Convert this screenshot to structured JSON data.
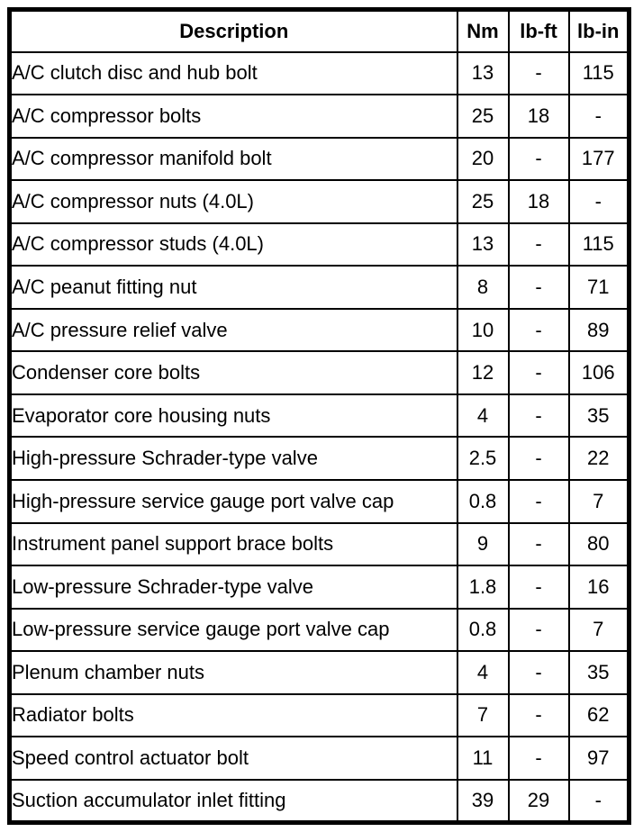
{
  "colors": {
    "background": "#ffffff",
    "border": "#000000",
    "text": "#000000"
  },
  "table": {
    "headers": {
      "description": "Description",
      "nm": "Nm",
      "lbft": "lb-ft",
      "lbin": "lb-in"
    },
    "rows": [
      {
        "description": "A/C clutch disc and hub bolt",
        "nm": "13",
        "lbft": "-",
        "lbin": "115"
      },
      {
        "description": "A/C compressor bolts",
        "nm": "25",
        "lbft": "18",
        "lbin": "-"
      },
      {
        "description": "A/C compressor manifold bolt",
        "nm": "20",
        "lbft": "-",
        "lbin": "177"
      },
      {
        "description": "A/C compressor nuts (4.0L)",
        "nm": "25",
        "lbft": "18",
        "lbin": "-"
      },
      {
        "description": "A/C compressor studs (4.0L)",
        "nm": "13",
        "lbft": "-",
        "lbin": "115"
      },
      {
        "description": "A/C peanut fitting nut",
        "nm": "8",
        "lbft": "-",
        "lbin": "71"
      },
      {
        "description": "A/C pressure relief valve",
        "nm": "10",
        "lbft": "-",
        "lbin": "89"
      },
      {
        "description": "Condenser core bolts",
        "nm": "12",
        "lbft": "-",
        "lbin": "106"
      },
      {
        "description": "Evaporator core housing nuts",
        "nm": "4",
        "lbft": "-",
        "lbin": "35"
      },
      {
        "description": "High-pressure Schrader-type valve",
        "nm": "2.5",
        "lbft": "-",
        "lbin": "22"
      },
      {
        "description": "High-pressure service gauge port valve cap",
        "nm": "0.8",
        "lbft": "-",
        "lbin": "7"
      },
      {
        "description": "Instrument panel support brace bolts",
        "nm": "9",
        "lbft": "-",
        "lbin": "80"
      },
      {
        "description": "Low-pressure Schrader-type valve",
        "nm": "1.8",
        "lbft": "-",
        "lbin": "16"
      },
      {
        "description": "Low-pressure service gauge port valve cap",
        "nm": "0.8",
        "lbft": "-",
        "lbin": "7"
      },
      {
        "description": "Plenum chamber nuts",
        "nm": "4",
        "lbft": "-",
        "lbin": "35"
      },
      {
        "description": "Radiator bolts",
        "nm": "7",
        "lbft": "-",
        "lbin": "62"
      },
      {
        "description": "Speed control actuator bolt",
        "nm": "11",
        "lbft": "-",
        "lbin": "97"
      },
      {
        "description": "Suction accumulator inlet fitting",
        "nm": "39",
        "lbft": "29",
        "lbin": "-"
      }
    ]
  }
}
